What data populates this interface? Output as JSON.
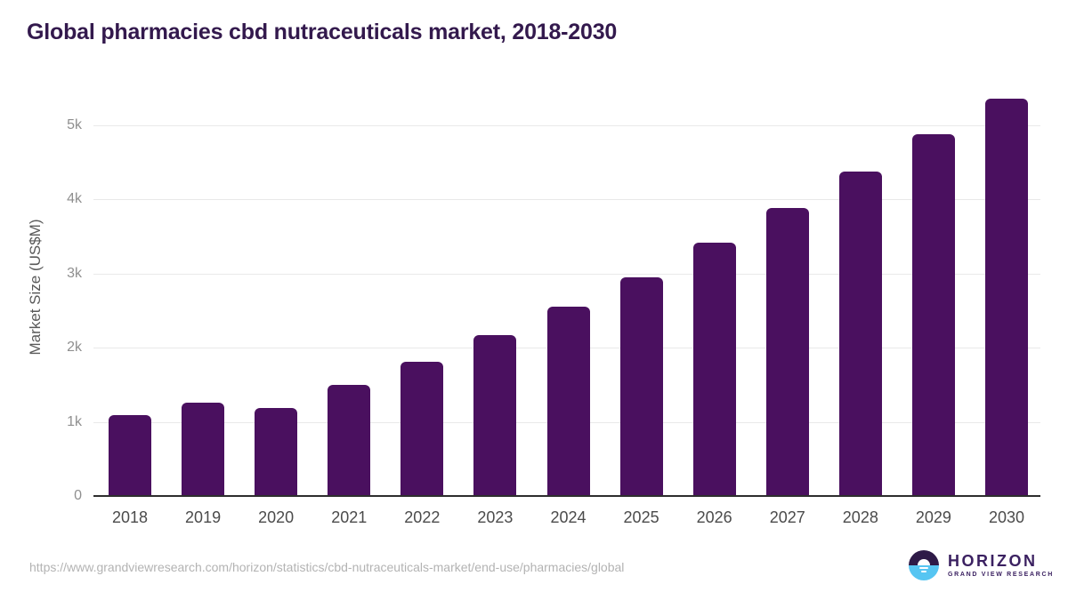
{
  "title": "Global pharmacies cbd nutraceuticals market, 2018-2030",
  "chart_data": {
    "type": "bar",
    "title": "Global pharmacies cbd nutraceuticals market, 2018-2030",
    "categories": [
      "2018",
      "2019",
      "2020",
      "2021",
      "2022",
      "2023",
      "2024",
      "2025",
      "2026",
      "2027",
      "2028",
      "2029",
      "2030"
    ],
    "values": [
      1080,
      1250,
      1170,
      1485,
      1800,
      2150,
      2535,
      2940,
      3405,
      3870,
      4360,
      4860,
      5340
    ],
    "xlabel": "",
    "ylabel": "Market Size (US$M)",
    "units": "US$M",
    "ylim": [
      0,
      5500
    ],
    "ytick_values": [
      0,
      1000,
      2000,
      3000,
      4000,
      5000
    ],
    "ytick_labels": [
      "0",
      "1k",
      "2k",
      "3k",
      "4k",
      "5k"
    ],
    "grid": true,
    "legend_position": "none"
  },
  "footer": {
    "source_url": "https://www.grandviewresearch.com/horizon/statistics/cbd-nutraceuticals-market/end-use/pharmacies/global",
    "logo_title": "HORIZON",
    "logo_subtitle": "GRAND VIEW RESEARCH"
  },
  "colors": {
    "bar": "#4a105f",
    "title": "#33194d",
    "axis_line": "#2e2e2e",
    "gridline": "#e9e9e9",
    "x_tick": "#4b4b4b",
    "y_tick": "#8f8f8f",
    "y_axis_title": "#595959",
    "source_url": "#b3b3b3",
    "logo_dark": "#2e1a47",
    "logo_blue": "#56c5f2",
    "logo_text": "#3b2161"
  }
}
